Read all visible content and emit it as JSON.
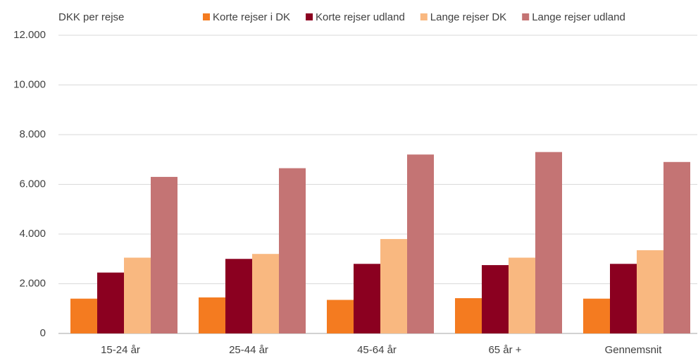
{
  "chart_data": {
    "type": "bar",
    "y_label": "DKK per rejse",
    "categories": [
      "15-24 år",
      "25-44 år",
      "45-64 år",
      "65 år +",
      "Gennemsnit"
    ],
    "series": [
      {
        "name": "Korte rejser i DK",
        "color": "#f47b20",
        "values": [
          1400,
          1450,
          1350,
          1420,
          1400
        ]
      },
      {
        "name": "Korte rejser udland",
        "color": "#8b0020",
        "values": [
          2450,
          3000,
          2800,
          2750,
          2800
        ]
      },
      {
        "name": "Lange rejser DK",
        "color": "#f9b880",
        "values": [
          3050,
          3200,
          3800,
          3050,
          3350
        ]
      },
      {
        "name": "Lange rejser udland",
        "color": "#c47474",
        "values": [
          6300,
          6650,
          7200,
          7300,
          6900
        ]
      }
    ],
    "ylim": [
      0,
      12000
    ],
    "yticks": [
      0,
      {
        "value": 2000,
        "label": "2.000"
      },
      {
        "value": 4000,
        "label": "4.000"
      },
      {
        "value": 6000,
        "label": "6.000"
      },
      {
        "value": 8000,
        "label": "8.000"
      },
      {
        "value": 10000,
        "label": "10.000"
      },
      {
        "value": 12000,
        "label": "12.000"
      }
    ],
    "grid": true,
    "legend": "top"
  }
}
